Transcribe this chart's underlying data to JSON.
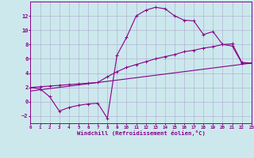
{
  "xlabel": "Windchill (Refroidissement éolien,°C)",
  "background_color": "#cce8ed",
  "grid_color": "#aaaacc",
  "line_color": "#880088",
  "xlim": [
    0,
    23
  ],
  "ylim": [
    -3,
    14
  ],
  "xticks": [
    0,
    1,
    2,
    3,
    4,
    5,
    6,
    7,
    8,
    9,
    10,
    11,
    12,
    13,
    14,
    15,
    16,
    17,
    18,
    19,
    20,
    21,
    22,
    23
  ],
  "yticks": [
    -2,
    0,
    2,
    4,
    6,
    8,
    10,
    12
  ],
  "series1_x": [
    0,
    1,
    2,
    3,
    4,
    5,
    6,
    7,
    8,
    9,
    10,
    11,
    12,
    13,
    14,
    15,
    16,
    17,
    18,
    19,
    20,
    21,
    22,
    23
  ],
  "series1_y": [
    2.0,
    1.8,
    0.7,
    -1.3,
    -0.8,
    -0.5,
    -0.3,
    -0.2,
    -2.3,
    6.5,
    9.0,
    12.0,
    12.8,
    13.2,
    13.0,
    12.0,
    11.4,
    11.3,
    9.4,
    9.8,
    8.0,
    7.8,
    5.4,
    5.4
  ],
  "series2_x": [
    0,
    1,
    2,
    3,
    4,
    5,
    6,
    7,
    8,
    9,
    10,
    11,
    12,
    13,
    14,
    15,
    16,
    17,
    18,
    19,
    20,
    21,
    22,
    23
  ],
  "series2_y": [
    2.0,
    2.1,
    2.2,
    2.3,
    2.4,
    2.5,
    2.6,
    2.7,
    3.5,
    4.2,
    4.8,
    5.2,
    5.6,
    6.0,
    6.3,
    6.6,
    7.0,
    7.2,
    7.5,
    7.7,
    8.0,
    8.1,
    5.5,
    5.4
  ],
  "series3_x": [
    0,
    23
  ],
  "series3_y": [
    1.5,
    5.4
  ]
}
